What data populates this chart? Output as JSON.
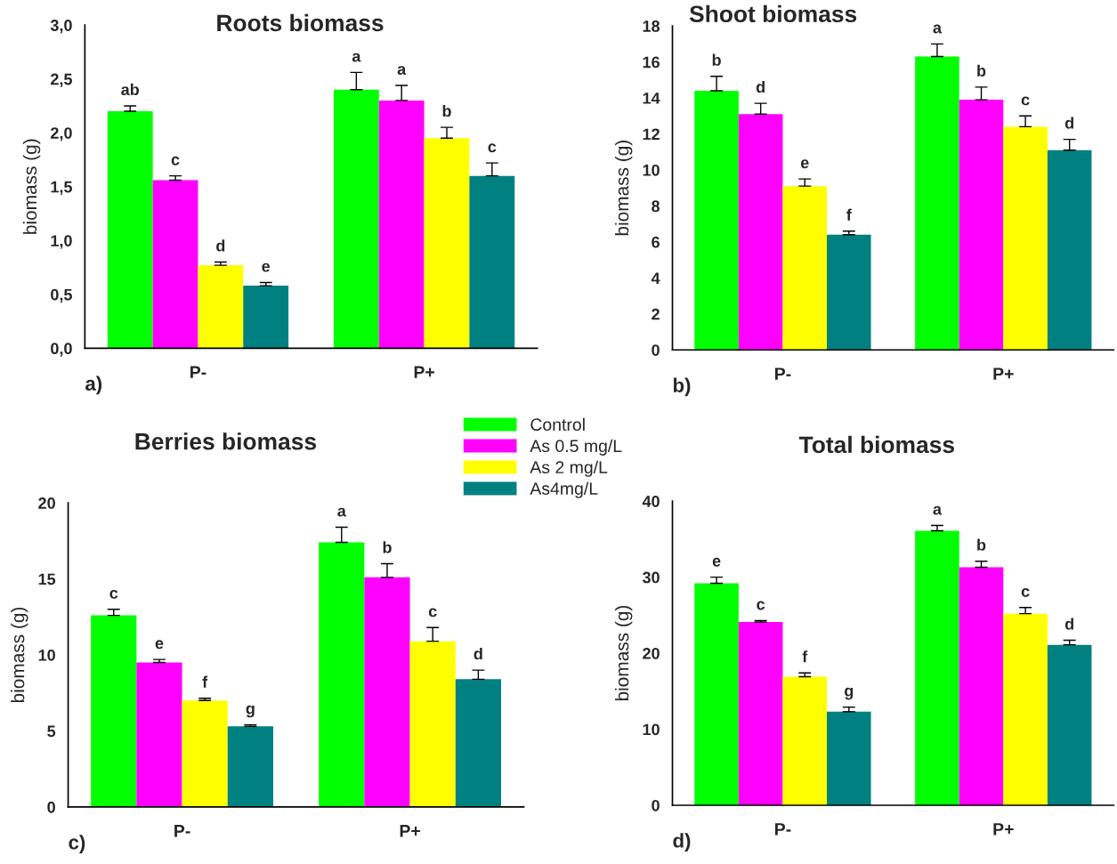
{
  "chart_data": [
    {
      "type": "bar",
      "title": "Roots biomass",
      "ylabel": "biomass (g)",
      "categories": [
        "P-",
        "P+"
      ],
      "annotations": [
        "a)"
      ],
      "ylim": [
        0,
        3.0
      ],
      "yticks": [
        {
          "value": 0,
          "label": "0,0"
        },
        {
          "value": 0.5,
          "label": "0,5"
        },
        {
          "value": 1.0,
          "label": "1,0"
        },
        {
          "value": 1.5,
          "label": "1,5"
        },
        {
          "value": 2.0,
          "label": "2,0"
        },
        {
          "value": 2.5,
          "label": "2,5"
        },
        {
          "value": 3.0,
          "label": "3,0"
        }
      ],
      "grid": false,
      "series": [
        {
          "color": "#00ff00",
          "values": [
            2.2,
            2.4
          ],
          "errors": [
            [
              2.2,
              2.25
            ],
            [
              2.4,
              2.56
            ]
          ],
          "value_labels": [
            "ab",
            "a"
          ]
        },
        {
          "color": "#ff00ff",
          "values": [
            1.56,
            2.3
          ],
          "errors": [
            [
              1.56,
              1.6
            ],
            [
              2.3,
              2.44
            ]
          ],
          "value_labels": [
            "c",
            "a"
          ]
        },
        {
          "color": "#ffff00",
          "values": [
            0.77,
            1.95
          ],
          "errors": [
            [
              0.77,
              0.8
            ],
            [
              1.95,
              2.05
            ]
          ],
          "value_labels": [
            "d",
            "b"
          ]
        },
        {
          "color": "#008080",
          "values": [
            0.58,
            1.6
          ],
          "errors": [
            [
              0.58,
              0.61
            ],
            [
              1.6,
              1.72
            ]
          ],
          "value_labels": [
            "e",
            "c"
          ]
        }
      ]
    },
    {
      "type": "bar",
      "title": "Shoot biomass",
      "ylabel": "biomass (g)",
      "categories": [
        "P-",
        "P+"
      ],
      "annotations": [
        "b)"
      ],
      "ylim": [
        0,
        18
      ],
      "yticks": [
        0,
        2,
        4,
        6,
        8,
        10,
        12,
        14,
        16,
        18
      ],
      "grid": false,
      "series": [
        {
          "color": "#00ff00",
          "values": [
            14.4,
            16.3
          ],
          "errors": [
            [
              14.4,
              15.2
            ],
            [
              16.3,
              17.0
            ]
          ],
          "value_labels": [
            "b",
            "a"
          ]
        },
        {
          "color": "#ff00ff",
          "values": [
            13.1,
            13.9
          ],
          "errors": [
            [
              13.1,
              13.7
            ],
            [
              13.9,
              14.6
            ]
          ],
          "value_labels": [
            "d",
            "b"
          ]
        },
        {
          "color": "#ffff00",
          "values": [
            9.1,
            12.4
          ],
          "errors": [
            [
              9.1,
              9.5
            ],
            [
              12.4,
              13.0
            ]
          ],
          "value_labels": [
            "e",
            "c"
          ]
        },
        {
          "color": "#008080",
          "values": [
            6.4,
            11.1
          ],
          "errors": [
            [
              6.4,
              6.6
            ],
            [
              11.1,
              11.7
            ]
          ],
          "value_labels": [
            "f",
            "d"
          ]
        }
      ]
    },
    {
      "type": "bar",
      "title": "Berries biomass",
      "ylabel": "biomass (g)",
      "categories": [
        "P-",
        "P+"
      ],
      "annotations": [
        "c)"
      ],
      "ylim": [
        0,
        20
      ],
      "yticks": [
        0,
        5,
        10,
        15,
        20
      ],
      "grid": false,
      "legend": "top right",
      "series": [
        {
          "name": "Control",
          "color": "#00ff00",
          "values": [
            12.6,
            17.4
          ],
          "errors": [
            [
              12.6,
              13.0
            ],
            [
              17.4,
              18.4
            ]
          ],
          "value_labels": [
            "c",
            "a"
          ]
        },
        {
          "name": "As 0.5 mg/L",
          "color": "#ff00ff",
          "values": [
            9.5,
            15.1
          ],
          "errors": [
            [
              9.5,
              9.7
            ],
            [
              15.1,
              16.0
            ]
          ],
          "value_labels": [
            "e",
            "b"
          ]
        },
        {
          "name": "As 2 mg/L",
          "color": "#ffff00",
          "values": [
            7.0,
            10.9
          ],
          "errors": [
            [
              7.0,
              7.15
            ],
            [
              10.9,
              11.8
            ]
          ],
          "value_labels": [
            "f",
            "c"
          ]
        },
        {
          "name": "As4mg/L",
          "color": "#008080",
          "values": [
            5.3,
            8.4
          ],
          "errors": [
            [
              5.3,
              5.4
            ],
            [
              8.4,
              9.0
            ]
          ],
          "value_labels": [
            "g",
            "d"
          ]
        }
      ]
    },
    {
      "type": "bar",
      "title": "Total biomass",
      "ylabel": "biomass (g)",
      "categories": [
        "P-",
        "P+"
      ],
      "annotations": [
        "d)"
      ],
      "ylim": [
        0,
        40
      ],
      "yticks": [
        0,
        10,
        20,
        30,
        40
      ],
      "grid": false,
      "series": [
        {
          "color": "#00ff00",
          "values": [
            29.2,
            36.1
          ],
          "errors": [
            [
              29.2,
              30.0
            ],
            [
              36.1,
              36.8
            ]
          ],
          "value_labels": [
            "e",
            "a"
          ]
        },
        {
          "color": "#ff00ff",
          "values": [
            24.1,
            31.3
          ],
          "errors": [
            [
              24.1,
              24.3
            ],
            [
              31.3,
              32.1
            ]
          ],
          "value_labels": [
            "c",
            "b"
          ]
        },
        {
          "color": "#ffff00",
          "values": [
            16.9,
            25.2
          ],
          "errors": [
            [
              16.9,
              17.4
            ],
            [
              25.2,
              26.0
            ]
          ],
          "value_labels": [
            "f",
            "c"
          ]
        },
        {
          "color": "#008080",
          "values": [
            12.3,
            21.1
          ],
          "errors": [
            [
              12.3,
              12.9
            ],
            [
              21.1,
              21.7
            ]
          ],
          "value_labels": [
            "g",
            "d"
          ]
        }
      ]
    }
  ]
}
